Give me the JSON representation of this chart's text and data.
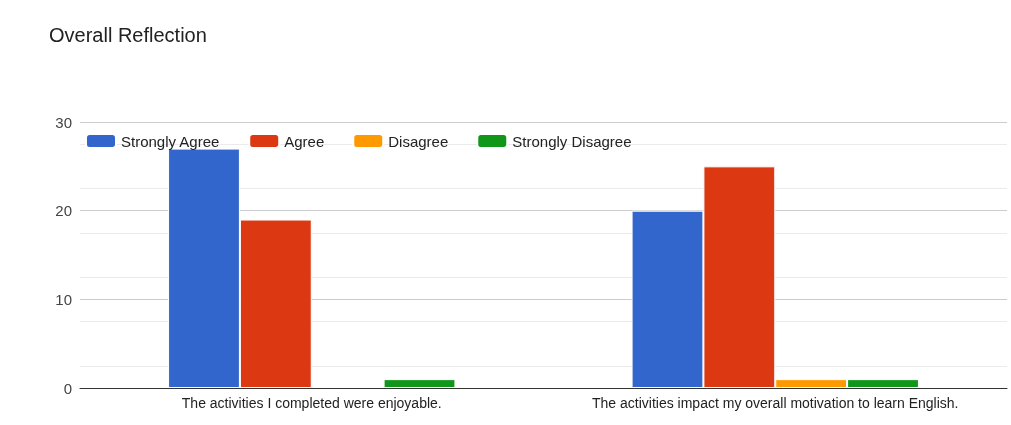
{
  "chart_data": {
    "type": "bar",
    "title": "Overall Reflection",
    "categories": [
      "The activities I completed were enjoyable.",
      "The activities impact my overall motivation to learn English."
    ],
    "series": [
      {
        "name": "Strongly Agree",
        "color": "#3366cc",
        "values": [
          27,
          20
        ]
      },
      {
        "name": "Agree",
        "color": "#dc3912",
        "values": [
          19,
          25
        ]
      },
      {
        "name": "Disagree",
        "color": "#ff9900",
        "values": [
          0,
          1
        ]
      },
      {
        "name": "Strongly Disagree",
        "color": "#109618",
        "values": [
          1,
          1
        ]
      }
    ],
    "ylim": [
      0,
      30
    ],
    "yticks": [
      0,
      10,
      20,
      30
    ],
    "grid": "y",
    "legend": "top left"
  }
}
